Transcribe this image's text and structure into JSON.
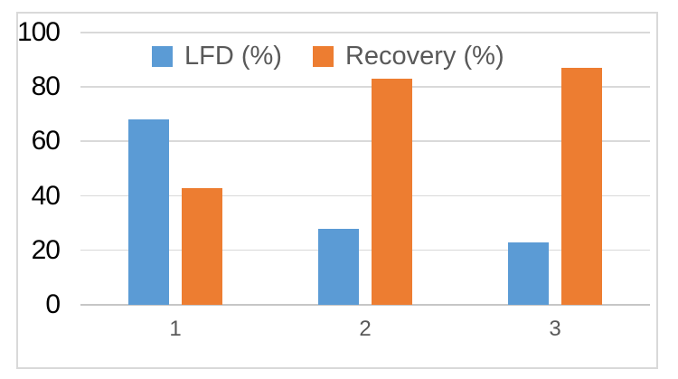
{
  "chart_data": {
    "type": "bar",
    "categories": [
      "1",
      "2",
      "3"
    ],
    "series": [
      {
        "name": "LFD (%)",
        "color": "#5B9BD5",
        "values": [
          68,
          28,
          23
        ]
      },
      {
        "name": "Recovery (%)",
        "color": "#ED7D31",
        "values": [
          43,
          83,
          87
        ]
      }
    ],
    "title": "",
    "xlabel": "",
    "ylabel": "",
    "ylim": [
      0,
      100
    ],
    "yticks": [
      0,
      20,
      40,
      60,
      80,
      100
    ],
    "grid": true,
    "legend_position": "top-inside"
  },
  "style": {
    "background": "#FFFFFF",
    "frame_border_color": "#D9D9D9",
    "gridline_color": "#D9D9D9",
    "axis_line_color": "#C6C6C6",
    "y_tick_color": "#000000",
    "x_tick_color": "#595959",
    "legend_text_color": "#595959"
  }
}
